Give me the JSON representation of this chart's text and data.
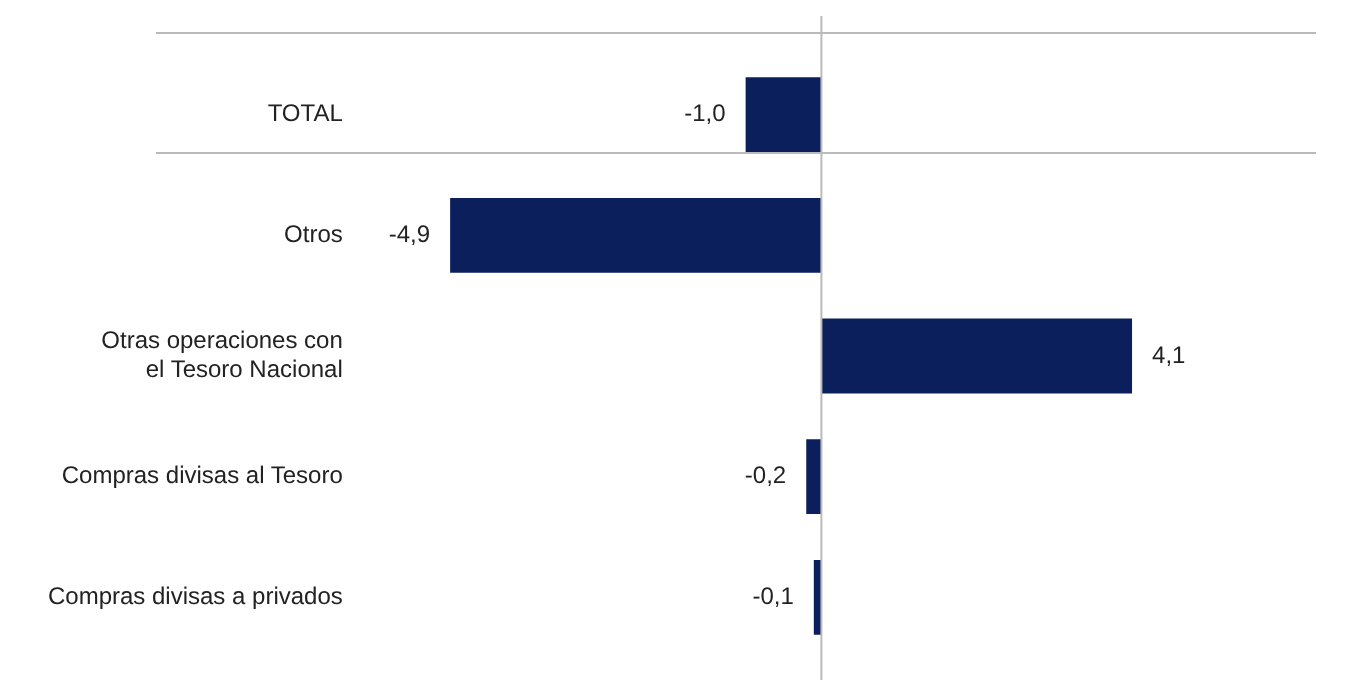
{
  "chart_data": {
    "type": "bar",
    "orientation": "horizontal",
    "categories": [
      "TOTAL",
      "Otros",
      "Otras operaciones con el Tesoro Nacional",
      "Compras divisas al Tesoro",
      "Compras divisas a privados"
    ],
    "values": [
      -1.0,
      -4.9,
      4.1,
      -0.2,
      -0.1
    ],
    "value_labels": [
      "-1,0",
      "-4,9",
      "4,1",
      "-0,2",
      "-0,1"
    ],
    "color": "#0a1f5c",
    "grid": false,
    "legend": false
  }
}
